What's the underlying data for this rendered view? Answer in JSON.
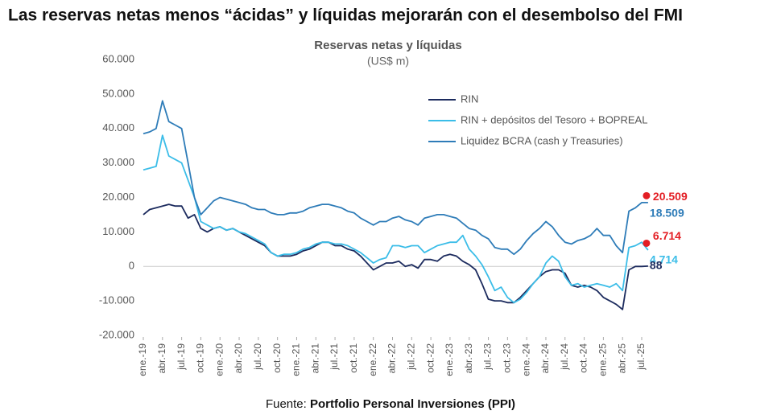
{
  "chart_data": {
    "type": "line",
    "title": "Las reservas netas menos “ácidas” y líquidas mejorarán con el desembolso del FMI",
    "subtitle": "Reservas netas y líquidas",
    "unit_label": "(US$ m)",
    "source_prefix": "Fuente: ",
    "source": "Portfolio Personal Inversiones (PPI)",
    "categories": [
      "ene.-19",
      null,
      null,
      "abr.-19",
      null,
      null,
      "jul.-19",
      null,
      null,
      "oct.-19",
      null,
      null,
      "ene.-20",
      null,
      null,
      "abr.-20",
      null,
      null,
      "jul.-20",
      null,
      null,
      "oct.-20",
      null,
      null,
      "ene.-21",
      null,
      null,
      "abr.-21",
      null,
      null,
      "jul.-21",
      null,
      null,
      "oct.-21",
      null,
      null,
      "ene.-22",
      null,
      null,
      "abr.-22",
      null,
      null,
      "jul.-22",
      null,
      null,
      "oct.-22",
      null,
      null,
      "ene.-23",
      null,
      null,
      "abr.-23",
      null,
      null,
      "jul.-23",
      null,
      null,
      "oct.-23",
      null,
      null,
      "ene.-24",
      null,
      null,
      "abr.-24",
      null,
      null,
      "jul.-24",
      null,
      null,
      "oct.-24",
      null,
      null,
      "ene.-25",
      null,
      null,
      "abr.-25",
      null,
      null,
      "jul.-25",
      null
    ],
    "series": [
      {
        "name": "RIN",
        "color": "#1c2b5e",
        "values": [
          15000,
          16500,
          17000,
          17500,
          18000,
          17500,
          17500,
          14000,
          15000,
          11000,
          10000,
          11000,
          11500,
          10500,
          11000,
          10000,
          9000,
          8000,
          7000,
          6000,
          4000,
          3000,
          3000,
          3000,
          3500,
          4500,
          5000,
          6000,
          7000,
          7000,
          6000,
          6000,
          5000,
          4500,
          3000,
          1000,
          -1000,
          0,
          1000,
          1000,
          1500,
          0,
          500,
          -500,
          2000,
          2000,
          1500,
          3000,
          3500,
          3000,
          1500,
          500,
          -1000,
          -5000,
          -9500,
          -10000,
          -10000,
          -10500,
          -10500,
          -9000,
          -7000,
          -5000,
          -3000,
          -1500,
          -1000,
          -1000,
          -2000,
          -5500,
          -6000,
          -5500,
          -6000,
          -7000,
          -9000,
          -10000,
          -11000,
          -12500,
          -1000,
          0,
          0,
          88
        ]
      },
      {
        "name": "RIN + depósitos del Tesoro + BOPREAL",
        "color": "#3bbde8",
        "values": [
          28000,
          28500,
          29000,
          38000,
          32000,
          31000,
          30000,
          25000,
          20000,
          13000,
          12000,
          11000,
          11500,
          10500,
          11000,
          10000,
          9500,
          8500,
          7500,
          6500,
          4000,
          3000,
          3500,
          3500,
          4000,
          5000,
          5500,
          6500,
          7000,
          7000,
          6500,
          6500,
          6000,
          5000,
          4000,
          2500,
          1000,
          2000,
          2500,
          6000,
          6000,
          5500,
          6000,
          6000,
          4000,
          5000,
          6000,
          6500,
          7000,
          7000,
          9000,
          5000,
          3000,
          500,
          -3000,
          -7000,
          -6000,
          -9000,
          -10500,
          -9500,
          -7500,
          -5000,
          -3000,
          1000,
          3000,
          1500,
          -3000,
          -5500,
          -5000,
          -6000,
          -5500,
          -5000,
          -5500,
          -6000,
          -5000,
          -7000,
          5500,
          6000,
          7000,
          4714
        ]
      },
      {
        "name": "Liquidez BCRA (cash y Treasuries)",
        "color": "#2e7cb8",
        "values": [
          38500,
          39000,
          40000,
          48000,
          42000,
          41000,
          40000,
          30000,
          20000,
          15000,
          17000,
          19000,
          20000,
          19500,
          19000,
          18500,
          18000,
          17000,
          16500,
          16500,
          15500,
          15000,
          15000,
          15500,
          15500,
          16000,
          17000,
          17500,
          18000,
          18000,
          17500,
          17000,
          16000,
          15500,
          14000,
          13000,
          12000,
          13000,
          13000,
          14000,
          14500,
          13500,
          13000,
          12000,
          14000,
          14500,
          15000,
          15000,
          14500,
          14000,
          12500,
          11000,
          10500,
          9000,
          8000,
          5500,
          5000,
          5000,
          3500,
          5000,
          7500,
          9500,
          11000,
          13000,
          11500,
          9000,
          7000,
          6500,
          7500,
          8000,
          9000,
          11000,
          9000,
          9000,
          6000,
          4000,
          16000,
          17000,
          18500,
          18509
        ]
      }
    ],
    "ylim": [
      -20000,
      60000
    ],
    "yticks": [
      {
        "value": 60000,
        "label": "60.000"
      },
      {
        "value": 50000,
        "label": "50.000"
      },
      {
        "value": 40000,
        "label": "40.000"
      },
      {
        "value": 30000,
        "label": "30.000"
      },
      {
        "value": 20000,
        "label": "20.000"
      },
      {
        "value": 10000,
        "label": "10.000"
      },
      0,
      {
        "value": -10000,
        "label": "-10.000"
      },
      {
        "value": -20000,
        "label": "-20.000"
      }
    ],
    "annotations": [
      {
        "value": 20509,
        "label": "20.509",
        "color": "#e31e24",
        "dot": true
      },
      {
        "value": 18509,
        "label": "18.509",
        "color": "#2e7cb8",
        "dot": false
      },
      {
        "value": 6714,
        "label": "6.714",
        "color": "#e31e24",
        "dot": true
      },
      {
        "value": 4714,
        "label": "4.714",
        "color": "#3bbde8",
        "dot": false
      },
      {
        "value": 88,
        "label": "88",
        "color": "#1c2b5e",
        "dot": false
      }
    ]
  }
}
